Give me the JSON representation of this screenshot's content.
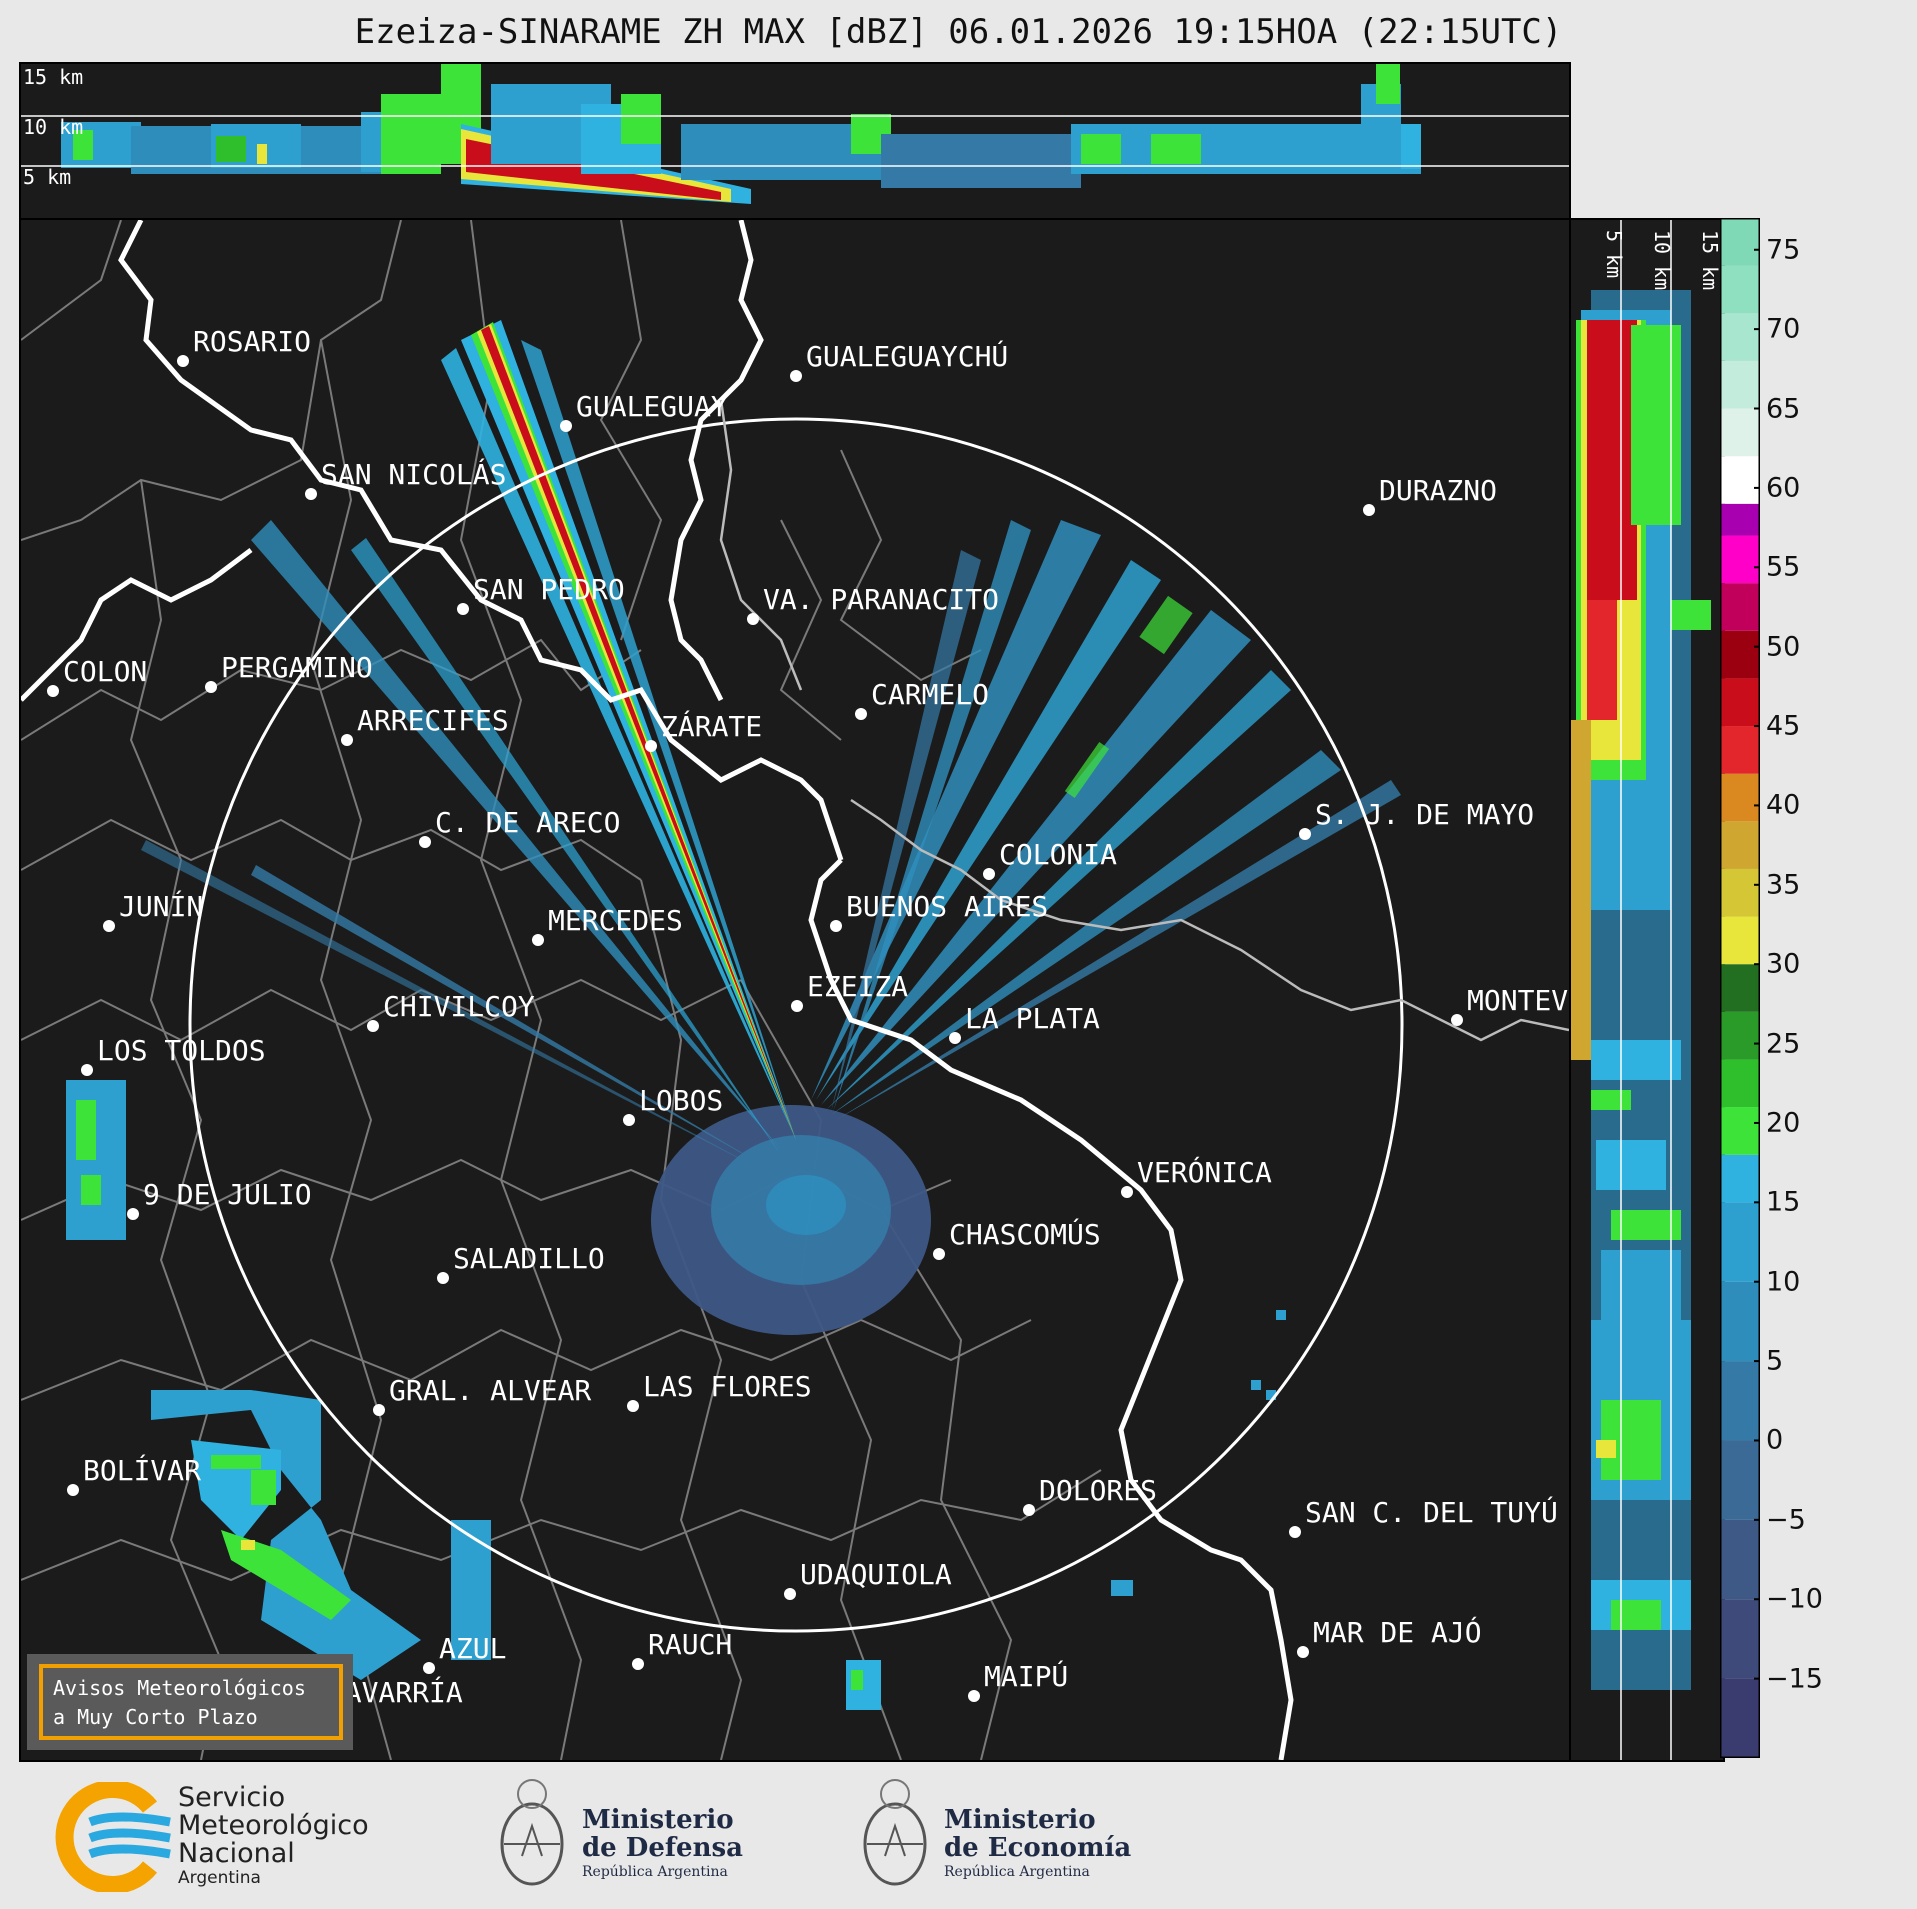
{
  "title": "Ezeiza-SINARAME ZH MAX [dBZ] 06.01.2026 19:15HOA (22:15UTC)",
  "top_panel": {
    "height_labels": [
      "15 km",
      "10 km",
      "5 km"
    ]
  },
  "side_panel": {
    "height_labels": [
      "5 km",
      "10 km",
      "15 km"
    ]
  },
  "colorbar": {
    "unit": "dBZ",
    "ticks": [
      "75",
      "70",
      "65",
      "60",
      "55",
      "50",
      "45",
      "40",
      "35",
      "30",
      "25",
      "20",
      "15",
      "10",
      "5",
      "0",
      "−5",
      "−10",
      "−15"
    ],
    "stops": [
      {
        "from": -20,
        "color": "#3a3b6e"
      },
      {
        "from": -15,
        "color": "#3d4a7a"
      },
      {
        "from": -10,
        "color": "#3e5986"
      },
      {
        "from": -5,
        "color": "#3a6a95"
      },
      {
        "from": 0,
        "color": "#357aa6"
      },
      {
        "from": 5,
        "color": "#2f8dbc"
      },
      {
        "from": 10,
        "color": "#2ea0cf"
      },
      {
        "from": 15,
        "color": "#2fb2e0"
      },
      {
        "from": 18,
        "color": "#3ee33a"
      },
      {
        "from": 21,
        "color": "#2fbf2c"
      },
      {
        "from": 24,
        "color": "#2a9a28"
      },
      {
        "from": 27,
        "color": "#226f22"
      },
      {
        "from": 30,
        "color": "#e8e63a"
      },
      {
        "from": 33,
        "color": "#d4c635"
      },
      {
        "from": 36,
        "color": "#cfa730"
      },
      {
        "from": 39,
        "color": "#d9891f"
      },
      {
        "from": 42,
        "color": "#e2262b"
      },
      {
        "from": 45,
        "color": "#c90d1a"
      },
      {
        "from": 48,
        "color": "#9b0010"
      },
      {
        "from": 51,
        "color": "#c0005a"
      },
      {
        "from": 54,
        "color": "#ff00c8"
      },
      {
        "from": 57,
        "color": "#a800b0"
      },
      {
        "from": 59,
        "color": "#ffffff"
      },
      {
        "from": 62,
        "color": "#dff2ea"
      },
      {
        "from": 65,
        "color": "#c4ecdc"
      },
      {
        "from": 68,
        "color": "#a9e6cf"
      },
      {
        "from": 71,
        "color": "#8fdfc1"
      },
      {
        "from": 74,
        "color": "#7fd8b6"
      }
    ]
  },
  "cities": [
    {
      "name": "ROSARIO"
    },
    {
      "name": "GUALEGUAYCHÚ"
    },
    {
      "name": "GUALEGUAY"
    },
    {
      "name": "SAN NICOLÁS"
    },
    {
      "name": "DURAZNO"
    },
    {
      "name": "SAN PEDRO"
    },
    {
      "name": "VA. PARANACITO"
    },
    {
      "name": "COLON"
    },
    {
      "name": "PERGAMINO"
    },
    {
      "name": "CARMELO"
    },
    {
      "name": "ARRECIFES"
    },
    {
      "name": "ZÁRATE"
    },
    {
      "name": "S. J. DE MAYO"
    },
    {
      "name": "C. DE ARECO"
    },
    {
      "name": "COLONIA"
    },
    {
      "name": "BUENOS AIRES"
    },
    {
      "name": "JUNÍN"
    },
    {
      "name": "MERCEDES"
    },
    {
      "name": "EZEIZA"
    },
    {
      "name": "MONTEV"
    },
    {
      "name": "CHIVILCOY"
    },
    {
      "name": "LA PLATA"
    },
    {
      "name": "LOS TOLDOS"
    },
    {
      "name": "LOBOS"
    },
    {
      "name": "VERÓNICA"
    },
    {
      "name": "9 DE JULIO"
    },
    {
      "name": "CHASCOMÚS"
    },
    {
      "name": "SALADILLO"
    },
    {
      "name": "GRAL. ALVEAR"
    },
    {
      "name": "LAS FLORES"
    },
    {
      "name": "BOLÍVAR"
    },
    {
      "name": "DOLORES"
    },
    {
      "name": "SAN C. DEL TUYÚ"
    },
    {
      "name": "UDAQUIOLA"
    },
    {
      "name": "MAR DE AJÓ"
    },
    {
      "name": "AZUL"
    },
    {
      "name": "RAUCH"
    },
    {
      "name": "OLAVARRÍA"
    },
    {
      "name": "MAIPÚ"
    }
  ],
  "notice": {
    "line1": "Avisos Meteorológicos",
    "line2": "a Muy Corto Plazo"
  },
  "logos": {
    "smn": {
      "line1": "Servicio",
      "line2": "Meteorológico",
      "line3": "Nacional",
      "line4": "Argentina"
    },
    "defensa": {
      "line1": "Ministerio",
      "line2": "de Defensa",
      "line3": "República Argentina"
    },
    "economia": {
      "line1": "Ministerio",
      "line2": "de Economía",
      "line3": "República Argentina"
    }
  }
}
